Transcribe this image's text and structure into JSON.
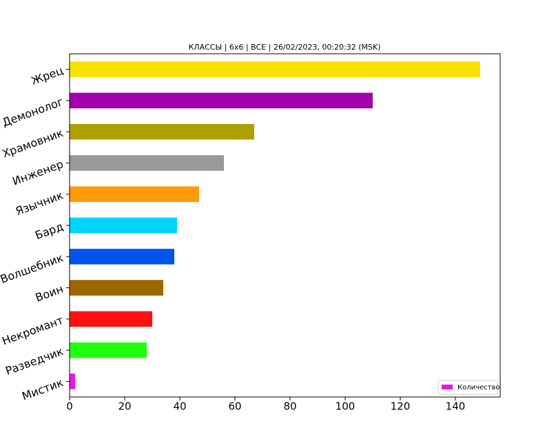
{
  "chart_data": {
    "type": "barh",
    "title": "КЛАССЫ | 6х6 | ВСЕ | 26/02/2023, 00:20:32 (MSK)",
    "categories": [
      "Мистик",
      "Разведчик",
      "Некромант",
      "Воин",
      "Волшебник",
      "Бард",
      "Язычник",
      "Инженер",
      "Храмовник",
      "Демонолог",
      "Жрец"
    ],
    "series": [
      {
        "name": "Количество",
        "values": [
          2,
          28,
          30,
          34,
          38,
          39,
          47,
          56,
          67,
          110,
          149
        ],
        "colors": [
          "#e619e6",
          "#22ff11",
          "#ff1111",
          "#a06600",
          "#0055ee",
          "#00d5ff",
          "#ff9a0a",
          "#999999",
          "#ada000",
          "#a300ad",
          "#fae200"
        ]
      }
    ],
    "xlim": [
      0,
      156.25
    ],
    "xticks": [
      0,
      20,
      40,
      60,
      80,
      100,
      120,
      140
    ],
    "legend": "lower right"
  }
}
